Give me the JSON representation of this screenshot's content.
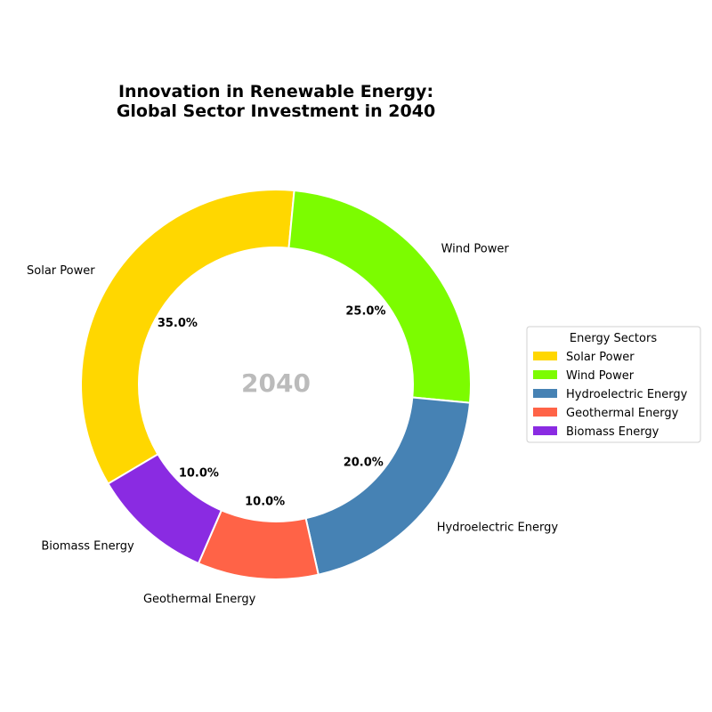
{
  "chart_data": {
    "type": "pie",
    "variant": "donut",
    "title": "Innovation in Renewable Energy:\nGlobal Sector Investment in 2040",
    "center_label": "2040",
    "categories": [
      "Solar Power",
      "Wind Power",
      "Hydroelectric Energy",
      "Geothermal Energy",
      "Biomass Energy"
    ],
    "values": [
      35.0,
      25.0,
      20.0,
      10.0,
      10.0
    ],
    "percent_labels": [
      "35.0%",
      "25.0%",
      "20.0%",
      "10.0%",
      "10.0%"
    ],
    "colors": [
      "#FFD700",
      "#7CFC00",
      "#4682B4",
      "#FF6347",
      "#8A2BE2"
    ],
    "legend": {
      "title": "Energy Sectors",
      "placement": "right",
      "entries": [
        "Solar Power",
        "Wind Power",
        "Hydroelectric Energy",
        "Geothermal Energy",
        "Biomass Energy"
      ]
    }
  }
}
